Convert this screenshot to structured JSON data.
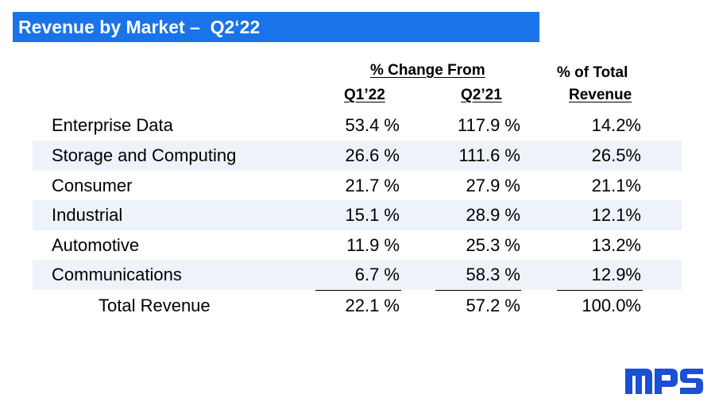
{
  "title": "Revenue by Market –  Q2‘22",
  "headers": {
    "group": "% Change From",
    "col1": "Q1’22",
    "col2": "Q2’21",
    "col3_line1": "% of Total",
    "col3_line2": "Revenue"
  },
  "rows": [
    {
      "market": "Enterprise Data",
      "q1": "53.4 %",
      "q2": "117.9 %",
      "total": "14.2%"
    },
    {
      "market": "Storage and Computing",
      "q1": "26.6 %",
      "q2": "111.6 %",
      "total": "26.5%"
    },
    {
      "market": "Consumer",
      "q1": "21.7 %",
      "q2": "27.9 %",
      "total": "21.1%"
    },
    {
      "market": "Industrial",
      "q1": "15.1 %",
      "q2": "28.9 %",
      "total": "12.1%"
    },
    {
      "market": "Automotive",
      "q1": "11.9 %",
      "q2": "25.3 %",
      "total": "13.2%"
    },
    {
      "market": "Communications",
      "q1": "6.7 %",
      "q2": "58.3 %",
      "total": "12.9%"
    }
  ],
  "total_row": {
    "market": "Total Revenue",
    "q1": "22.1 %",
    "q2": "57.2 %",
    "total": "100.0%"
  },
  "logo": {
    "text": "MPS",
    "color": "#1a4fd6"
  },
  "colors": {
    "title_bar": "#1a73e8",
    "row_shade": "#eef3fa"
  }
}
